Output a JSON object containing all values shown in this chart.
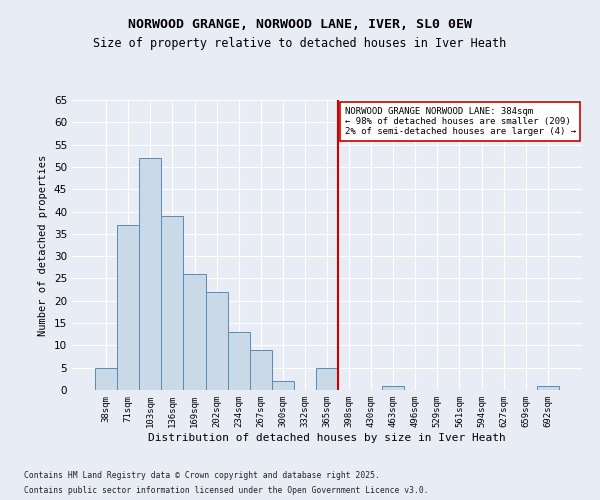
{
  "title1": "NORWOOD GRANGE, NORWOOD LANE, IVER, SL0 0EW",
  "title2": "Size of property relative to detached houses in Iver Heath",
  "xlabel": "Distribution of detached houses by size in Iver Heath",
  "ylabel": "Number of detached properties",
  "categories": [
    "38sqm",
    "71sqm",
    "103sqm",
    "136sqm",
    "169sqm",
    "202sqm",
    "234sqm",
    "267sqm",
    "300sqm",
    "332sqm",
    "365sqm",
    "398sqm",
    "430sqm",
    "463sqm",
    "496sqm",
    "529sqm",
    "561sqm",
    "594sqm",
    "627sqm",
    "659sqm",
    "692sqm"
  ],
  "values": [
    5,
    37,
    52,
    39,
    26,
    22,
    13,
    9,
    2,
    0,
    5,
    0,
    0,
    1,
    0,
    0,
    0,
    0,
    0,
    0,
    1
  ],
  "bar_color": "#c9d9e8",
  "bar_edge_color": "#5a8ab5",
  "vline_index": 11,
  "vline_color": "#cc0000",
  "annotation_text": "NORWOOD GRANGE NORWOOD LANE: 384sqm\n← 98% of detached houses are smaller (209)\n2% of semi-detached houses are larger (4) →",
  "annotation_box_color": "#ffffff",
  "annotation_box_edge_color": "#cc0000",
  "ylim": [
    0,
    65
  ],
  "yticks": [
    0,
    5,
    10,
    15,
    20,
    25,
    30,
    35,
    40,
    45,
    50,
    55,
    60,
    65
  ],
  "bg_color": "#e8edf5",
  "grid_color": "#ffffff",
  "footer1": "Contains HM Land Registry data © Crown copyright and database right 2025.",
  "footer2": "Contains public sector information licensed under the Open Government Licence v3.0."
}
